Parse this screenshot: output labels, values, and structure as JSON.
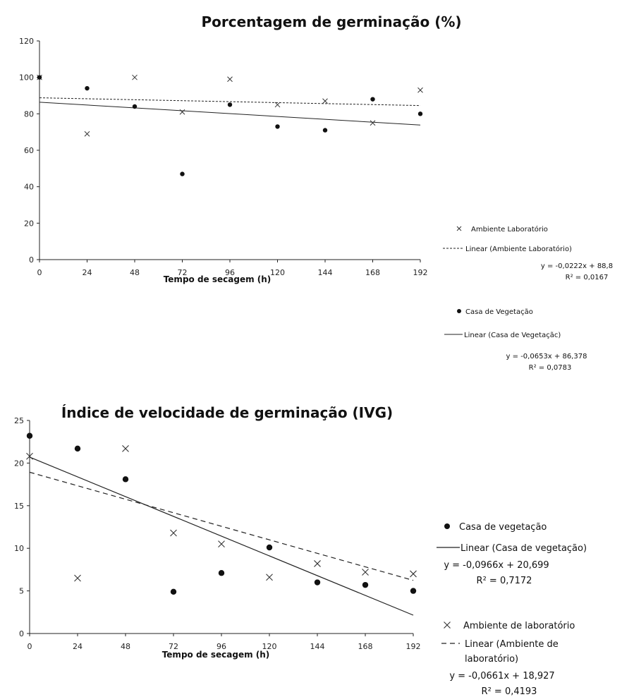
{
  "chart_data": [
    {
      "type": "scatter",
      "title": "Porcentagem de germinação (%)",
      "xlabel": "Tempo de secagem (h)",
      "ylabel": "",
      "xlim": [
        0,
        192
      ],
      "ylim": [
        0,
        120
      ],
      "xticks": [
        "0",
        "24",
        "48",
        "72",
        "96",
        "120",
        "144",
        "168",
        "192"
      ],
      "yticks": [
        "0",
        "20",
        "40",
        "60",
        "80",
        "100",
        "120"
      ],
      "grid": false,
      "legend_position": "right",
      "series": [
        {
          "name": "Ambiente Laboratório",
          "marker": "x",
          "x": [
            0,
            24,
            48,
            72,
            96,
            120,
            144,
            168,
            192
          ],
          "y": [
            100,
            69,
            100,
            81,
            99,
            85,
            87,
            75,
            93
          ],
          "trend": {
            "name": "Linear (Ambiente Laboratório)",
            "style": "dotted",
            "slope": -0.0222,
            "intercept": 88.8,
            "equation": "y = -0,0222x + 88,8",
            "r2": "R² = 0,0167"
          }
        },
        {
          "name": "Casa de Vegetação",
          "marker": "dot",
          "x": [
            0,
            24,
            48,
            72,
            96,
            120,
            144,
            168,
            192
          ],
          "y": [
            100,
            94,
            84,
            47,
            85,
            73,
            71,
            88,
            80
          ],
          "trend": {
            "name": "Linear (Casa de Vegetaçãc)",
            "style": "solid",
            "slope": -0.0653,
            "intercept": 86.378,
            "equation": "y = -0,0653x + 86,378",
            "r2": "R² = 0,0783"
          }
        }
      ]
    },
    {
      "type": "scatter",
      "title": "Índice de velocidade de germinação (IVG)",
      "xlabel": "Tempo de secagem (h)",
      "ylabel": "",
      "xlim": [
        0,
        192
      ],
      "ylim": [
        0,
        25
      ],
      "xticks": [
        "0",
        "24",
        "48",
        "72",
        "96",
        "120",
        "144",
        "168",
        "192"
      ],
      "yticks": [
        "0",
        "5",
        "10",
        "15",
        "20",
        "25"
      ],
      "grid": false,
      "legend_position": "right",
      "series": [
        {
          "name": "Casa de vegetação",
          "marker": "dot",
          "x": [
            0,
            24,
            48,
            72,
            96,
            120,
            144,
            168,
            192
          ],
          "y": [
            23.2,
            21.7,
            18.1,
            4.9,
            7.1,
            10.1,
            6.0,
            5.7,
            5.0
          ],
          "trend": {
            "name": "Linear (Casa de vegetação)",
            "style": "solid",
            "slope": -0.0966,
            "intercept": 20.699,
            "equation": "y = -0,0966x + 20,699",
            "r2": "R² = 0,7172"
          }
        },
        {
          "name": "Ambiente de laboratório",
          "marker": "x",
          "x": [
            0,
            24,
            48,
            72,
            96,
            120,
            144,
            168,
            192
          ],
          "y": [
            20.8,
            6.5,
            21.7,
            11.8,
            10.5,
            6.6,
            8.2,
            7.2,
            7.0
          ],
          "trend": {
            "name": "Linear (Ambiente de laboratório)",
            "name_lines": [
              "Linear (Ambiente de",
              "laboratório)"
            ],
            "style": "dashed",
            "slope": -0.0661,
            "intercept": 18.927,
            "equation": "y = -0,0661x + 18,927",
            "r2": "R² = 0,4193"
          }
        }
      ]
    }
  ]
}
